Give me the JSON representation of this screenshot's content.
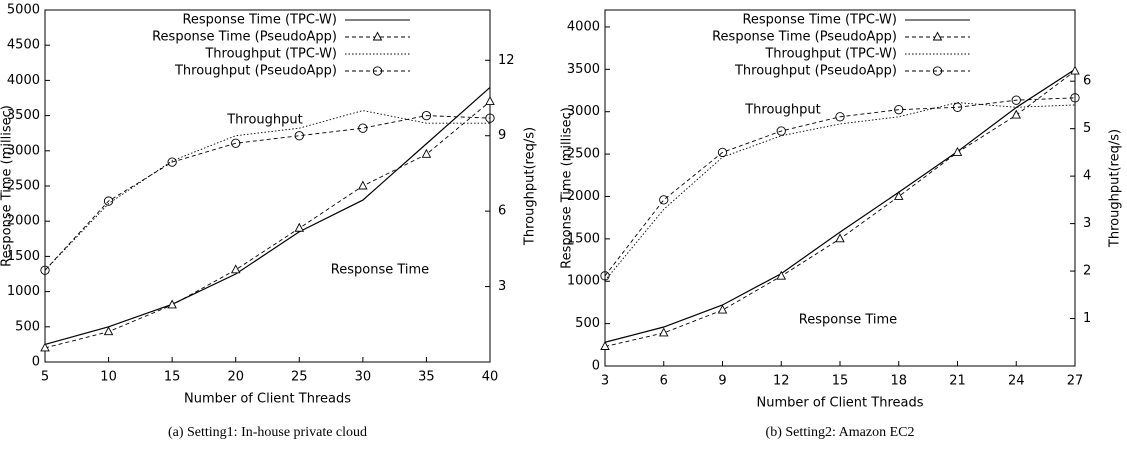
{
  "chart_data": [
    {
      "type": "line",
      "caption": "(a) Setting1: In-house private cloud",
      "xlabel": "Number of Client Threads",
      "ylabel": "Response Time (millisec)",
      "y2label": "Throughput(req/s)",
      "x": [
        5,
        10,
        15,
        20,
        25,
        30,
        35,
        40
      ],
      "xlim": [
        5,
        40
      ],
      "xticks": [
        5,
        10,
        15,
        20,
        25,
        30,
        35,
        40
      ],
      "ylim": [
        0,
        5000
      ],
      "yticks": [
        0,
        500,
        1000,
        1500,
        2000,
        2500,
        3000,
        3500,
        4000,
        4500,
        5000
      ],
      "y2lim": [
        0,
        14
      ],
      "y2ticks": [
        3,
        6,
        9,
        12
      ],
      "annotations": [
        "Throughput",
        "Response Time"
      ],
      "series": [
        {
          "name": "Response Time (TPC-W)",
          "color": "#000000",
          "linestyle": "solid",
          "marker": "none",
          "axis": "y",
          "values": [
            250,
            500,
            820,
            1250,
            1850,
            2300,
            3100,
            3900
          ]
        },
        {
          "name": "Response Time (PseudoApp)",
          "color": "#000000",
          "linestyle": "dashed",
          "marker": "triangle",
          "axis": "y",
          "values": [
            200,
            430,
            810,
            1310,
            1900,
            2500,
            2950,
            3700
          ]
        },
        {
          "name": "Throughput (TPC-W)",
          "color": "#000000",
          "linestyle": "dotted",
          "marker": "none",
          "axis": "y2",
          "values": [
            3.65,
            6.3,
            8.0,
            9.0,
            9.3,
            10.0,
            9.5,
            9.5
          ]
        },
        {
          "name": "Throughput (PseudoApp)",
          "color": "#000000",
          "linestyle": "dashed",
          "marker": "circle",
          "axis": "y2",
          "values": [
            3.65,
            6.4,
            7.95,
            8.7,
            9.0,
            9.3,
            9.8,
            9.7
          ]
        }
      ]
    },
    {
      "type": "line",
      "caption": "(b) Setting2: Amazon EC2",
      "xlabel": "Number of Client Threads",
      "ylabel": "Response Time (millisec)",
      "y2label": "Throughput(req/s)",
      "x": [
        3,
        6,
        9,
        12,
        15,
        18,
        21,
        24,
        27
      ],
      "xlim": [
        3,
        27
      ],
      "xticks": [
        3,
        6,
        9,
        12,
        15,
        18,
        21,
        24,
        27
      ],
      "ylim": [
        0,
        4200
      ],
      "yticks": [
        0,
        500,
        1000,
        1500,
        2000,
        2500,
        3000,
        3500,
        4000
      ],
      "y2lim": [
        0,
        7.5
      ],
      "y2ticks": [
        1,
        2,
        3,
        4,
        5,
        6
      ],
      "annotations": [
        "Throughput",
        "Response Time"
      ],
      "series": [
        {
          "name": "Response Time (TPC-W)",
          "color": "#000000",
          "linestyle": "solid",
          "marker": "none",
          "axis": "y",
          "values": [
            280,
            460,
            720,
            1090,
            1580,
            2050,
            2530,
            3050,
            3500
          ]
        },
        {
          "name": "Response Time (PseudoApp)",
          "color": "#000000",
          "linestyle": "dashed",
          "marker": "triangle",
          "axis": "y",
          "values": [
            230,
            390,
            660,
            1060,
            1500,
            2000,
            2520,
            2960,
            3480
          ]
        },
        {
          "name": "Throughput (TPC-W)",
          "color": "#000000",
          "linestyle": "dotted",
          "marker": "none",
          "axis": "y2",
          "values": [
            1.8,
            3.3,
            4.4,
            4.85,
            5.1,
            5.25,
            5.55,
            5.45,
            5.5
          ]
        },
        {
          "name": "Throughput (PseudoApp)",
          "color": "#000000",
          "linestyle": "dashed",
          "marker": "circle",
          "axis": "y2",
          "values": [
            1.9,
            3.5,
            4.5,
            4.95,
            5.25,
            5.4,
            5.45,
            5.6,
            5.65
          ]
        }
      ]
    }
  ]
}
